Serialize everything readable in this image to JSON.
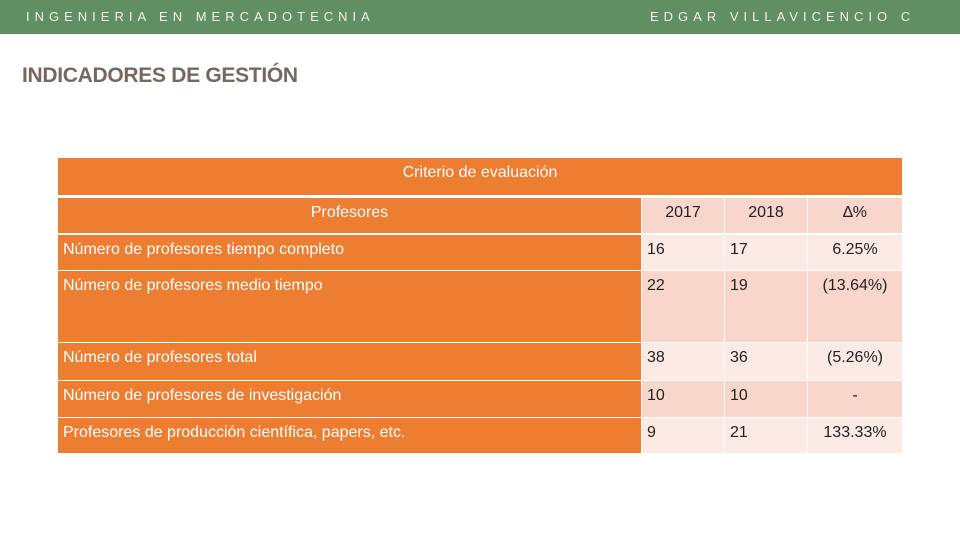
{
  "header": {
    "left": "INGENIERIA EN MERCADOTECNIA",
    "right": "EDGAR VILLAVICENCIO C"
  },
  "title": "INDICADORES DE GESTIÓN",
  "table": {
    "caption": "Criterio de evaluación",
    "columns": [
      "Profesores",
      "2017",
      "2018",
      "∆%"
    ],
    "rows": [
      [
        "Número de profesores tiempo completo",
        "16",
        "17",
        "6.25%"
      ],
      [
        "Número de profesores medio tiempo",
        "22",
        "19",
        "(13.64%)"
      ],
      [
        "Número de profesores total",
        "38",
        "36",
        "(5.26%)"
      ],
      [
        "Número de profesores de investigación",
        "10",
        "10",
        "-"
      ],
      [
        "Profesores de producción científica, papers, etc.",
        "9",
        "21",
        "133.33%"
      ]
    ]
  }
}
